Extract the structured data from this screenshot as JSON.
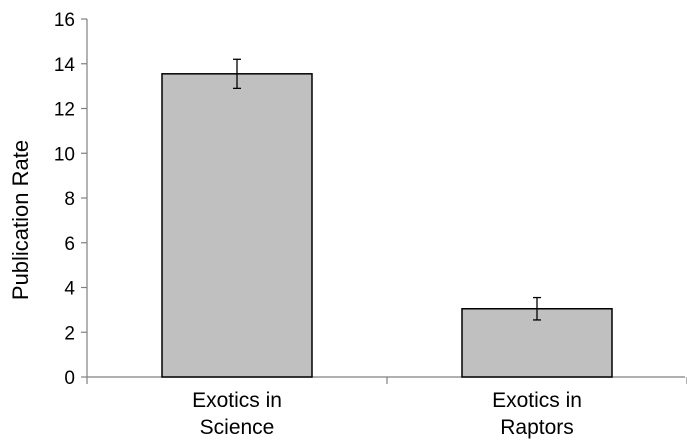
{
  "chart_data": {
    "type": "bar",
    "categories": [
      [
        "Exotics in",
        "Science"
      ],
      [
        "Exotics in",
        "Raptors"
      ]
    ],
    "values": [
      13.55,
      3.05
    ],
    "error": [
      0.65,
      0.5
    ],
    "xlabel": "",
    "ylabel": "Publication Rate",
    "ylim": [
      0,
      16
    ],
    "yticks": [
      0,
      2,
      4,
      6,
      8,
      10,
      12,
      14,
      16
    ],
    "grid": false,
    "colors": {
      "bar_fill": "#c0c0c0",
      "bar_stroke": "#000000",
      "axis": "#808080"
    }
  }
}
